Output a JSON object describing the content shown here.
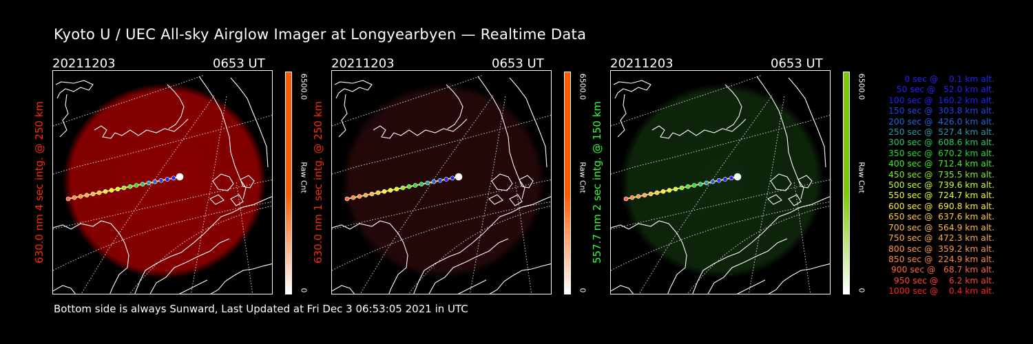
{
  "title": "Kyoto U / UEC All-sky Airglow Imager at Longyearbyen — Realtime Data",
  "footer": "Bottom side is always Sunward, Last Updated at Fri Dec  3 06:53:05 2021 in UTC",
  "colors": {
    "red_channel": "#ff2a00",
    "green_channel": "#33ff33",
    "background": "#000000",
    "map_lines": "#ffffff"
  },
  "panels": [
    {
      "date": "20211203",
      "time": "0653 UT",
      "side_label": "630.0 nm 4 sec intg. @ 250 km",
      "label_color": "#ff2a00",
      "colorbar_max": "6500.0",
      "colorbar_min": "0",
      "colorbar_unit": "Raw Cnt",
      "colorbar_color": "#ff5a00",
      "glow_color": "#a00000",
      "glow_strength": 0.85
    },
    {
      "date": "20211203",
      "time": "0653 UT",
      "side_label": "630.0 nm 1 sec intg. @ 250 km",
      "label_color": "#ff2a00",
      "colorbar_max": "6500.0",
      "colorbar_min": "0",
      "colorbar_unit": "Raw Cnt",
      "colorbar_color": "#ff5a00",
      "glow_color": "#2a0a0a",
      "glow_strength": 0.85
    },
    {
      "date": "20211203",
      "time": "0653 UT",
      "side_label": "557.7 nm 2 sec intg. @ 150 km",
      "label_color": "#33ff33",
      "colorbar_max": "6500.0",
      "colorbar_min": "0",
      "colorbar_unit": "Raw Cnt",
      "colorbar_color": "#7acc00",
      "glow_color": "#0f2a0c",
      "glow_strength": 0.9
    }
  ],
  "legend": [
    {
      "text": "   0 sec @    0.1 km alt.",
      "color": "#2222ff"
    },
    {
      "text": "  50 sec @   52.0 km alt.",
      "color": "#2222ff"
    },
    {
      "text": " 100 sec @  160.2 km alt.",
      "color": "#2222ff"
    },
    {
      "text": " 150 sec @  303.8 km alt.",
      "color": "#2244ee"
    },
    {
      "text": " 200 sec @  426.0 km alt.",
      "color": "#2266dd"
    },
    {
      "text": " 250 sec @  527.4 km alt.",
      "color": "#2a9aaa"
    },
    {
      "text": " 300 sec @  608.6 km alt.",
      "color": "#22cc66"
    },
    {
      "text": " 350 sec @  670.2 km alt.",
      "color": "#22dd33"
    },
    {
      "text": " 400 sec @  712.4 km alt.",
      "color": "#44ee22"
    },
    {
      "text": " 450 sec @  735.5 km alt.",
      "color": "#88ee22"
    },
    {
      "text": " 500 sec @  739.6 km alt.",
      "color": "#ccff22"
    },
    {
      "text": " 550 sec @  724.7 km alt.",
      "color": "#eeff22"
    },
    {
      "text": " 600 sec @  690.8 km alt.",
      "color": "#ffee33"
    },
    {
      "text": " 650 sec @  637.6 km alt.",
      "color": "#ffcc33"
    },
    {
      "text": " 700 sec @  564.9 km alt.",
      "color": "#ffbb44"
    },
    {
      "text": " 750 sec @  472.3 km alt.",
      "color": "#ffaa44"
    },
    {
      "text": " 800 sec @  359.2 km alt.",
      "color": "#ff9944"
    },
    {
      "text": " 850 sec @  224.9 km alt.",
      "color": "#ff8844"
    },
    {
      "text": " 900 sec @   68.7 km alt.",
      "color": "#ff6644"
    },
    {
      "text": " 950 sec @    6.2 km alt.",
      "color": "#ff4433"
    },
    {
      "text": "1000 sec @    0.4 km alt.",
      "color": "#ff2222"
    }
  ]
}
